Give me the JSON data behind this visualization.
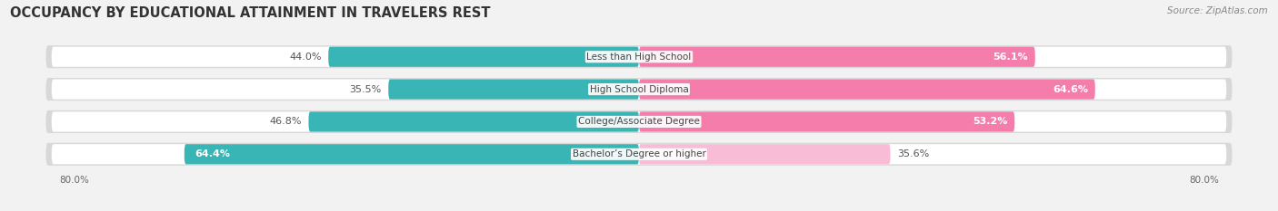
{
  "title": "OCCUPANCY BY EDUCATIONAL ATTAINMENT IN TRAVELERS REST",
  "source": "Source: ZipAtlas.com",
  "categories": [
    "Less than High School",
    "High School Diploma",
    "College/Associate Degree",
    "Bachelor’s Degree or higher"
  ],
  "owner_values": [
    44.0,
    35.5,
    46.8,
    64.4
  ],
  "renter_values": [
    56.1,
    64.6,
    53.2,
    35.6
  ],
  "owner_color": "#3ab5b5",
  "renter_color": "#f47dac",
  "renter_color_light": "#f9bcd6",
  "bg_color": "#f2f2f2",
  "bar_bg_color": "#ffffff",
  "bar_shadow_color": "#d8d8d8",
  "xlim": 80.0,
  "title_fontsize": 10.5,
  "label_fontsize": 8.0,
  "tick_fontsize": 7.5,
  "source_fontsize": 7.5
}
